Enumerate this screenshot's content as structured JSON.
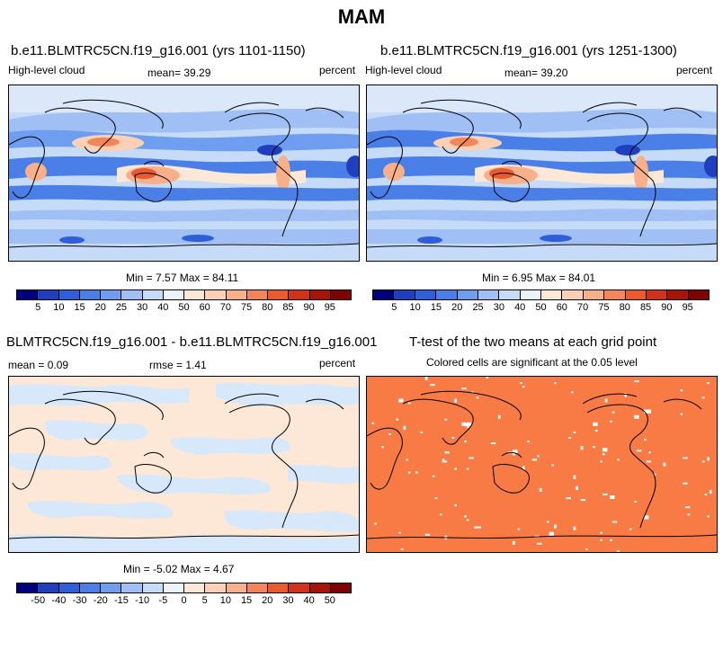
{
  "main_title": "MAM",
  "panels": {
    "p1": {
      "title": "b.e11.BLMTRC5CN.f19_g16.001 (yrs 1101-1150)",
      "left_label": "High-level cloud",
      "mean_text": "mean=  39.29",
      "unit": "percent",
      "minmax": "Min =   7.57 Max =  84.11"
    },
    "p2": {
      "title": "b.e11.BLMTRC5CN.f19_g16.001 (yrs 1251-1300)",
      "left_label": "High-level cloud",
      "mean_text": "mean=  39.20",
      "unit": "percent",
      "minmax": "Min =   6.95 Max =  84.01"
    },
    "p3": {
      "title": "BLMTRC5CN.f19_g16.001 - b.e11.BLMTRC5CN.f19_g16.001",
      "mean_text": "mean =   0.09",
      "rmse_text": "rmse =   1.41",
      "unit": "percent",
      "minmax": "Min =  -5.02 Max =   4.67"
    },
    "p4": {
      "title": "T-test of the two means at each grid point",
      "subtitle": "Colored cells are significant at the 0.05 level"
    }
  },
  "colorbars": {
    "abs": {
      "colors": [
        "#00007f",
        "#1f3fbf",
        "#2f5fd8",
        "#4a7fe8",
        "#6f9ef0",
        "#9fbff5",
        "#c6dbf8",
        "#eaf2fb",
        "#fde8d8",
        "#fbd0b4",
        "#f7b08a",
        "#f2855a",
        "#ea5a2e",
        "#d2321a",
        "#a71508",
        "#7f0000"
      ],
      "labels": [
        "5",
        "10",
        "15",
        "20",
        "25",
        "30",
        "40",
        "50",
        "60",
        "70",
        "75",
        "80",
        "85",
        "90",
        "95"
      ]
    },
    "diff": {
      "colors": [
        "#00007f",
        "#1f3fbf",
        "#2f5fd8",
        "#4a7fe8",
        "#6f9ef0",
        "#9fbff5",
        "#c6dbf8",
        "#eaf2fb",
        "#fde8d8",
        "#fbd0b4",
        "#f7b08a",
        "#f2855a",
        "#ea5a2e",
        "#d2321a",
        "#a71508",
        "#7f0000"
      ],
      "labels": [
        "-50",
        "-40",
        "-30",
        "-20",
        "-15",
        "-10",
        "-5",
        "0",
        "5",
        "10",
        "15",
        "20",
        "30",
        "40",
        "50"
      ]
    }
  },
  "colors": {
    "ttest_fill": "#f87a45",
    "diff_pos": "#fde8d8",
    "diff_neg": "#d8e8fb",
    "map_base": "#cfe0fb"
  }
}
